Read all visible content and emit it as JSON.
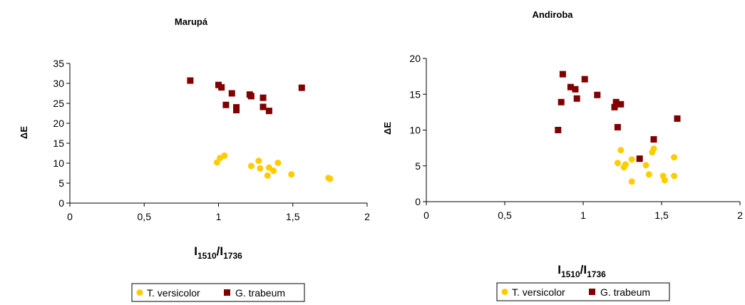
{
  "colors": {
    "series_1": "#FFCC00",
    "series_2": "#800000",
    "axis": "#000000"
  },
  "chart_data": [
    {
      "type": "scatter",
      "title": "Marupá",
      "xlabel_main": "I",
      "xlabel_sub1": "1510",
      "xlabel_sep": "/I",
      "xlabel_sub2": "1736",
      "ylabel": "ΔE",
      "xlim": [
        0,
        2
      ],
      "ylim": [
        0,
        35
      ],
      "x_ticks": [
        "0",
        "0,5",
        "1",
        "1,5",
        "2"
      ],
      "y_ticks": [
        "0",
        "5",
        "10",
        "15",
        "20",
        "25",
        "30",
        "35"
      ],
      "grid": false,
      "legend": "bottom",
      "series": [
        {
          "name": "T. versicolor",
          "marker": "circle",
          "points": [
            [
              0.99,
              10.2
            ],
            [
              1.01,
              11.3
            ],
            [
              1.04,
              11.9
            ],
            [
              1.22,
              9.3
            ],
            [
              1.27,
              10.6
            ],
            [
              1.28,
              8.7
            ],
            [
              1.33,
              6.9
            ],
            [
              1.34,
              8.9
            ],
            [
              1.37,
              8.1
            ],
            [
              1.4,
              10.1
            ],
            [
              1.49,
              7.2
            ],
            [
              1.74,
              6.3
            ],
            [
              1.75,
              6.1
            ]
          ]
        },
        {
          "name": "G. trabeum",
          "marker": "square",
          "points": [
            [
              0.81,
              30.7
            ],
            [
              1.0,
              29.6
            ],
            [
              1.02,
              29.0
            ],
            [
              1.05,
              24.6
            ],
            [
              1.09,
              27.5
            ],
            [
              1.12,
              23.3
            ],
            [
              1.12,
              24.0
            ],
            [
              1.21,
              27.2
            ],
            [
              1.22,
              26.8
            ],
            [
              1.3,
              26.4
            ],
            [
              1.3,
              24.1
            ],
            [
              1.34,
              23.1
            ],
            [
              1.56,
              28.9
            ]
          ]
        }
      ]
    },
    {
      "type": "scatter",
      "title": "Andiroba",
      "xlabel_main": "I",
      "xlabel_sub1": "1510",
      "xlabel_sep": "/I",
      "xlabel_sub2": "1736",
      "ylabel": "ΔE",
      "xlim": [
        0,
        2
      ],
      "ylim": [
        0,
        20
      ],
      "x_ticks": [
        "0",
        "0,5",
        "1",
        "1,5",
        "2"
      ],
      "y_ticks": [
        "0",
        "5",
        "10",
        "15",
        "20"
      ],
      "grid": false,
      "legend": "bottom",
      "series": [
        {
          "name": "T. versicolor",
          "marker": "circle",
          "points": [
            [
              1.22,
              5.4
            ],
            [
              1.24,
              7.2
            ],
            [
              1.26,
              4.8
            ],
            [
              1.27,
              5.2
            ],
            [
              1.31,
              2.8
            ],
            [
              1.31,
              5.9
            ],
            [
              1.4,
              5.1
            ],
            [
              1.42,
              3.8
            ],
            [
              1.44,
              6.9
            ],
            [
              1.45,
              7.4
            ],
            [
              1.51,
              3.6
            ],
            [
              1.52,
              3.0
            ],
            [
              1.58,
              6.2
            ],
            [
              1.58,
              3.6
            ]
          ]
        },
        {
          "name": "G. trabeum",
          "marker": "square",
          "points": [
            [
              0.84,
              10.0
            ],
            [
              0.86,
              13.9
            ],
            [
              0.87,
              17.8
            ],
            [
              0.92,
              16.0
            ],
            [
              0.95,
              15.7
            ],
            [
              0.96,
              14.4
            ],
            [
              1.01,
              17.1
            ],
            [
              1.09,
              14.9
            ],
            [
              1.2,
              13.2
            ],
            [
              1.21,
              13.9
            ],
            [
              1.22,
              10.4
            ],
            [
              1.24,
              13.6
            ],
            [
              1.36,
              6.0
            ],
            [
              1.45,
              8.7
            ],
            [
              1.6,
              11.6
            ]
          ]
        }
      ]
    }
  ]
}
